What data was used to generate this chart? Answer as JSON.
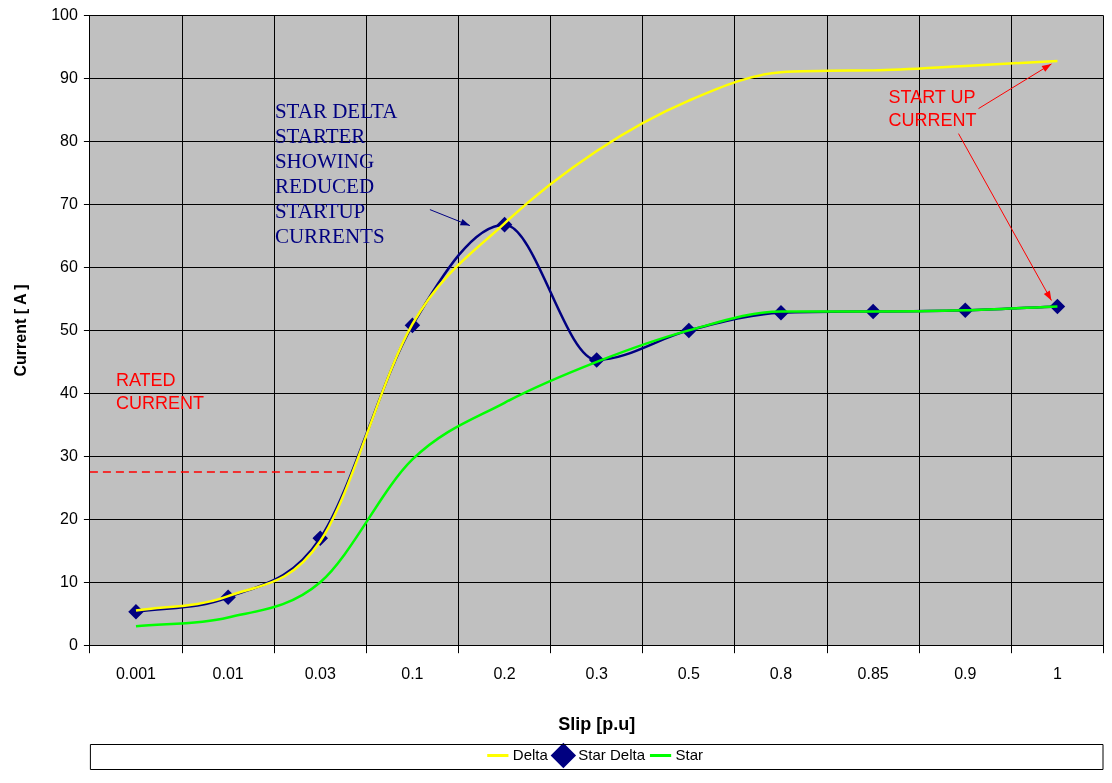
{
  "chart_data": {
    "type": "line",
    "xlabel": "Slip [p.u]",
    "ylabel": "Current [ A ]",
    "categories": [
      "0.001",
      "0.01",
      "0.03",
      "0.1",
      "0.2",
      "0.3",
      "0.5",
      "0.8",
      "0.85",
      "0.9",
      "1"
    ],
    "series": [
      {
        "name": "Delta",
        "color": "#ffff00",
        "marker": "none",
        "values": [
          5.5,
          7.8,
          16.5,
          51,
          67,
          78.5,
          86.5,
          91,
          91.3,
          92,
          92.8
        ]
      },
      {
        "name": "Star Delta",
        "color": "#000080",
        "marker": "diamond",
        "values": [
          5.3,
          7.6,
          17,
          50.8,
          66.8,
          45.3,
          50,
          52.8,
          53,
          53.2,
          53.8
        ]
      },
      {
        "name": "Star",
        "color": "#00ff00",
        "marker": "none",
        "values": [
          3,
          4.4,
          10,
          29.5,
          38.5,
          45,
          50,
          53,
          53,
          53.2,
          53.8
        ]
      }
    ],
    "ylim": [
      0,
      100
    ],
    "yticks": [
      0,
      10,
      20,
      30,
      40,
      50,
      60,
      70,
      80,
      90,
      100
    ],
    "grid": true,
    "legend": "bottom",
    "ref_lines": [
      {
        "axis": "y",
        "value": 27.5,
        "label": "RATED CURRENT",
        "color": "#ff0000",
        "line_style": "dashed"
      }
    ],
    "annotations": [
      "STAR DELTA STARTER SHOWING REDUCED STARTUP CURRENTS",
      {
        "text": "START UP CURRENT",
        "x": "1",
        "y": 92.8
      }
    ]
  }
}
